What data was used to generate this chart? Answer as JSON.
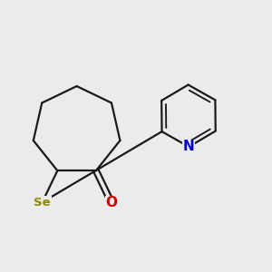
{
  "bg_color": "#ebebeb",
  "bond_color": "#1a1a1a",
  "bond_width": 1.6,
  "Se_color": "#8b8b00",
  "N_color": "#0000cc",
  "O_color": "#cc0000",
  "figsize": [
    3.0,
    3.0
  ],
  "dpi": 100,
  "xlim": [
    0.0,
    1.0
  ],
  "ylim": [
    0.0,
    1.0
  ]
}
